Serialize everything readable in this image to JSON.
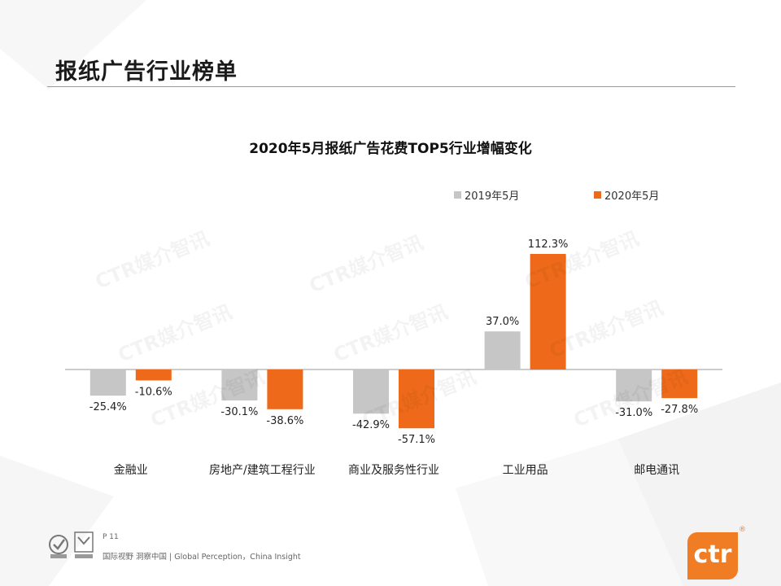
{
  "page": {
    "title": "报纸广告行业榜单",
    "page_number": "P 11",
    "slogan": "国际视野  洞察中国 |  Global Perception，China Insight",
    "brand": "ctr",
    "registered_mark": "®",
    "watermark_text": "CTR媒介智讯"
  },
  "colors": {
    "series_2019": "#c6c6c6",
    "series_2020": "#ee6a1a",
    "brand": "#f07c24"
  },
  "icons": [
    "sgs-certification-icon",
    "ukas-certification-icon",
    "ctr-logo-icon"
  ],
  "chart_data": {
    "type": "bar",
    "title": "2020年5月报纸广告花费TOP5行业增幅变化",
    "categories": [
      "金融业",
      "房地产/建筑工程行业",
      "商业及服务性行业",
      "工业用品",
      "邮电通讯"
    ],
    "series": [
      {
        "name": "2019年5月",
        "values": [
          -25.4,
          -30.1,
          -42.9,
          37.0,
          -31.0
        ],
        "labels": [
          "-25.4%",
          "-30.1%",
          "-42.9%",
          "37.0%",
          "-31.0%"
        ]
      },
      {
        "name": "2020年5月",
        "values": [
          -10.6,
          -38.6,
          -57.1,
          112.3,
          -27.8
        ],
        "labels": [
          "-10.6%",
          "-38.6%",
          "-57.1%",
          "112.3%",
          "-27.8%"
        ]
      }
    ],
    "unit": "%",
    "legend_position": "top-right",
    "grid": false
  }
}
